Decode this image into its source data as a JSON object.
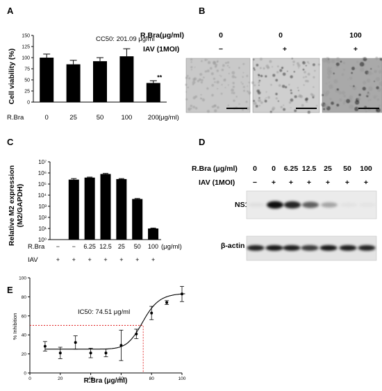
{
  "panels": {
    "A": {
      "letter": "A",
      "chart_data": {
        "type": "bar",
        "annotation": "CC50: 201.09 μg/ml",
        "ylabel": "Cell viability (%)",
        "row_label": "R.Bra",
        "unit_label": "(μg/ml)",
        "categories": [
          "0",
          "25",
          "50",
          "100",
          "200"
        ],
        "values": [
          100,
          85,
          92,
          103,
          43
        ],
        "errors": [
          8,
          9,
          8,
          17,
          5
        ],
        "significance": [
          "",
          "",
          "",
          "",
          "**"
        ],
        "yticks": [
          "0",
          "25",
          "50",
          "75",
          "100",
          "125",
          "150"
        ],
        "ylim": [
          0,
          150
        ]
      }
    },
    "B": {
      "letter": "B",
      "row1_label": "R.Bra(μg/ml)",
      "row2_label": "IAV (1MOI)",
      "columns": [
        {
          "conc": "0",
          "iav": "−"
        },
        {
          "conc": "0",
          "iav": "+"
        },
        {
          "conc": "100",
          "iav": "+"
        }
      ]
    },
    "C": {
      "letter": "C",
      "chart_data": {
        "type": "bar",
        "ylabel_line1": "Relative M2 expression",
        "ylabel_line2": "(M2/GAPDH)",
        "yscale": "log",
        "yticks": [
          "10⁰",
          "10¹",
          "10²",
          "10³",
          "10⁴",
          "10⁵",
          "10⁶",
          "10⁷"
        ],
        "ylim": [
          1,
          10000000
        ],
        "row1_label": "R.Bra",
        "row2_label": "IAV",
        "unit_label": "(μg/ml)",
        "rbra": [
          "−",
          "−",
          "6.25",
          "12.5",
          "25",
          "50",
          "100"
        ],
        "iav": [
          "+",
          "+",
          "+",
          "+",
          "+",
          "+",
          "+"
        ],
        "values": [
          1,
          250000,
          380000,
          800000,
          280000,
          4500,
          10
        ],
        "errors": [
          0,
          60000,
          40000,
          100000,
          30000,
          500,
          1
        ]
      }
    },
    "D": {
      "letter": "D",
      "row1_label": "R.Bra (μg/ml)",
      "row2_label": "IAV (1MOI)",
      "conc": [
        "0",
        "0",
        "6.25",
        "12.5",
        "25",
        "50",
        "100"
      ],
      "iav": [
        "−",
        "+",
        "+",
        "+",
        "+",
        "+",
        "+"
      ],
      "band1_label": "NS1",
      "band2_label": "β-actin"
    },
    "E": {
      "letter": "E",
      "chart_data": {
        "type": "scatter",
        "annotation": "IC50: 74.51 μg/ml",
        "xlabel": "R.Bra (μg/ml)",
        "ylabel": "% Inhibition",
        "xlim": [
          0,
          100
        ],
        "ylim": [
          0,
          100
        ],
        "xticks": [
          "0",
          "20",
          "40",
          "60",
          "80",
          "100"
        ],
        "yticks": [
          "0",
          "20",
          "40",
          "60",
          "80",
          "100"
        ],
        "points": [
          {
            "x": 10,
            "y": 28,
            "err": 5
          },
          {
            "x": 20,
            "y": 21,
            "err": 6
          },
          {
            "x": 30,
            "y": 32,
            "err": 7
          },
          {
            "x": 40,
            "y": 21,
            "err": 5
          },
          {
            "x": 50,
            "y": 21,
            "err": 4
          },
          {
            "x": 60,
            "y": 29,
            "err": 16
          },
          {
            "x": 70,
            "y": 41,
            "err": 5
          },
          {
            "x": 80,
            "y": 63,
            "err": 7
          },
          {
            "x": 90,
            "y": 74,
            "err": 2
          },
          {
            "x": 100,
            "y": 83,
            "err": 8
          }
        ],
        "ic50": 74.51,
        "ic50_y": 50,
        "fit": {
          "bottom": 25,
          "top": 84,
          "hill": 14
        }
      }
    }
  }
}
